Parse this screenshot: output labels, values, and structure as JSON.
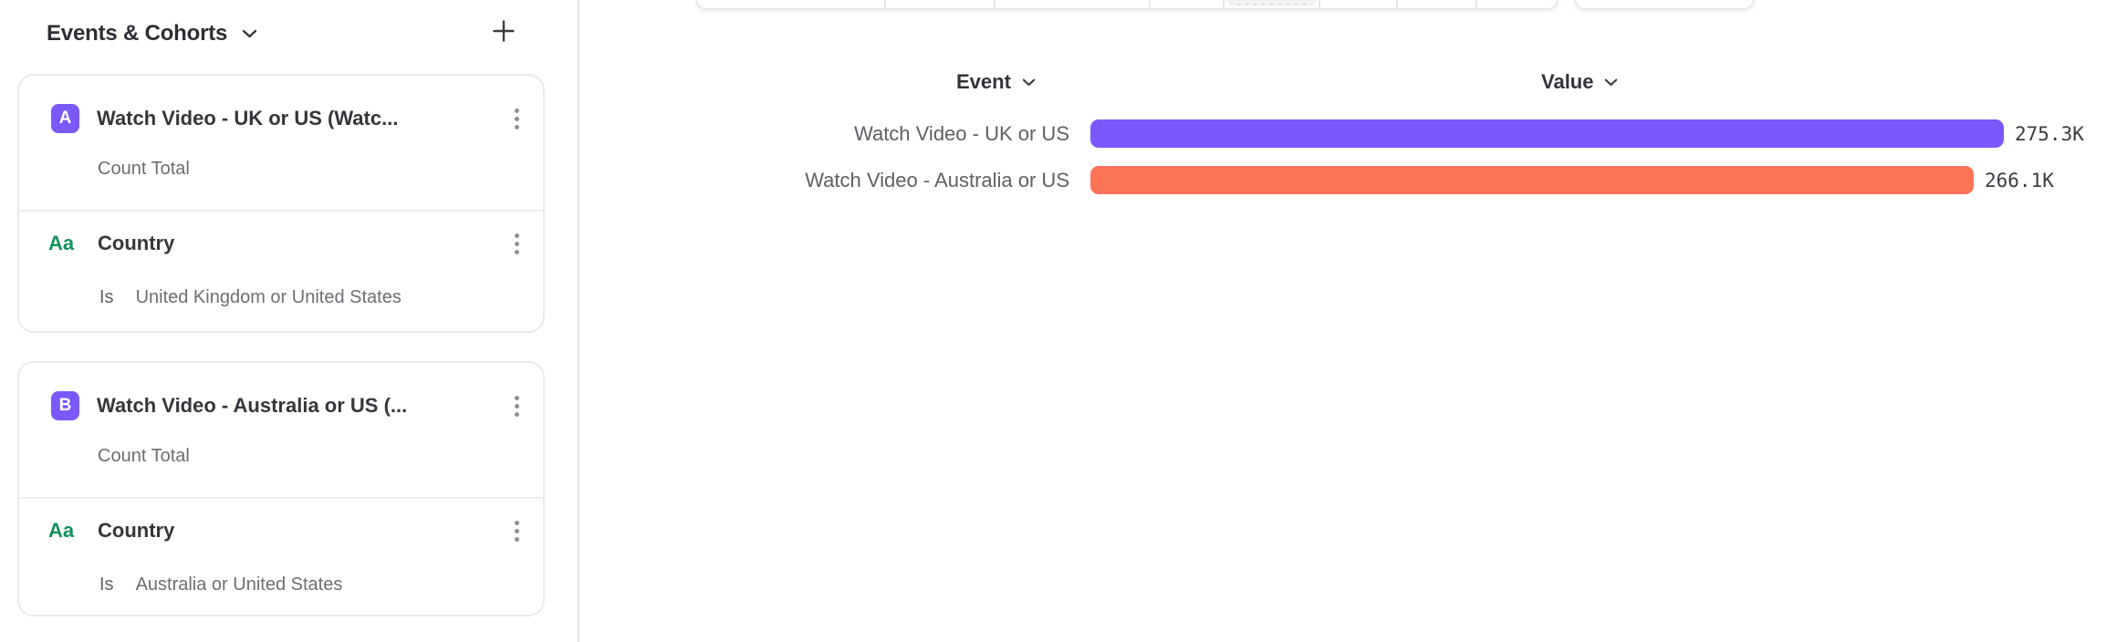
{
  "sidebar": {
    "title": "Events & Cohorts",
    "groups": [
      {
        "event": {
          "badge": "A",
          "badge_color": "#7A58FA",
          "title": "Watch Video - UK or US (Watc...",
          "subtitle": "Count Total"
        },
        "filter": {
          "icon": "Aa",
          "icon_color": "#12915F",
          "title": "Country",
          "operator": "Is",
          "value": "United Kingdom or United States"
        }
      },
      {
        "event": {
          "badge": "B",
          "badge_color": "#7A58FA",
          "title": "Watch Video - Australia or US (...",
          "subtitle": "Count Total"
        },
        "filter": {
          "icon": "Aa",
          "icon_color": "#12915F",
          "title": "Country",
          "operator": "Is",
          "value": "Australia or United States"
        }
      }
    ]
  },
  "chart_data": {
    "type": "bar",
    "orientation": "horizontal",
    "column_headers": {
      "event": "Event",
      "value": "Value"
    },
    "categories": [
      "Watch Video - UK or US",
      "Watch Video - Australia or US"
    ],
    "values": [
      275300,
      266100
    ],
    "value_labels": [
      "275.3K",
      "266.1K"
    ],
    "colors": [
      "#7A58FA",
      "#FC7458"
    ],
    "xlim": [
      0,
      275300
    ],
    "legend": "none",
    "grid": false
  }
}
